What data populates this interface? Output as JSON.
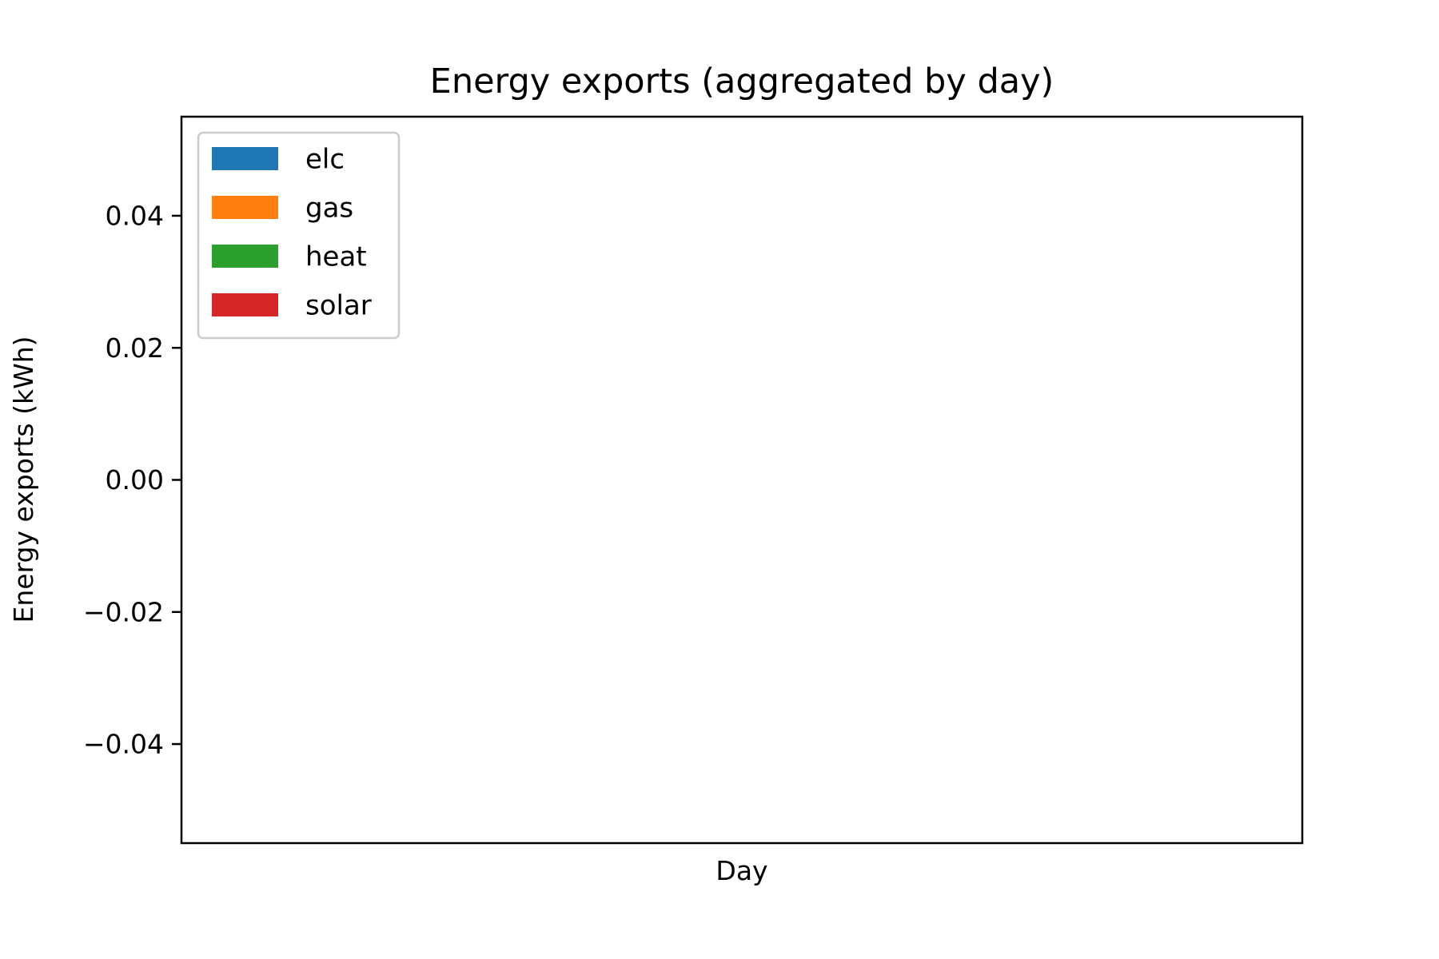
{
  "chart_data": {
    "type": "area",
    "title": "Energy exports (aggregated by day)",
    "xlabel": "Day",
    "ylabel": "Energy exports (kWh)",
    "ylim": [
      -0.055,
      0.055
    ],
    "yticks": [
      0.04,
      0.02,
      0.0,
      -0.02,
      -0.04
    ],
    "ytick_labels": [
      "0.04",
      "0.02",
      "0.00",
      "−0.02",
      "−0.04"
    ],
    "x": [],
    "series": [
      {
        "name": "elc",
        "color": "#1f77b4",
        "values": []
      },
      {
        "name": "gas",
        "color": "#ff7f0e",
        "values": []
      },
      {
        "name": "heat",
        "color": "#2ca02c",
        "values": []
      },
      {
        "name": "solar",
        "color": "#d62728",
        "values": []
      }
    ],
    "grid": false,
    "legend_position": "top-left"
  }
}
